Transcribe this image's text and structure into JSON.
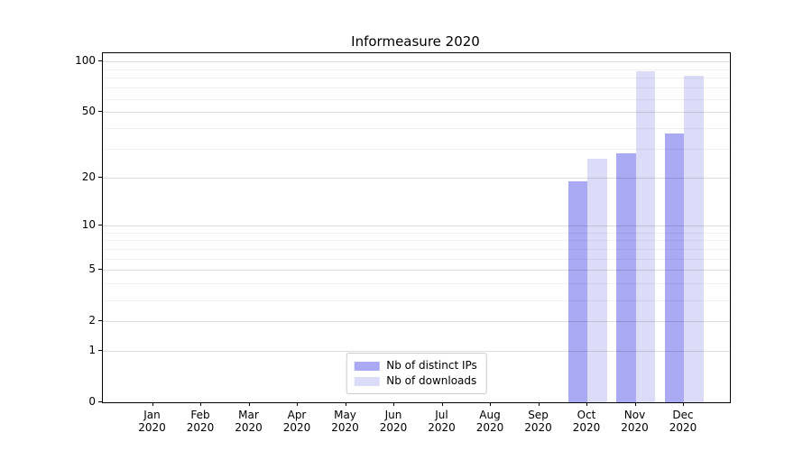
{
  "figure": {
    "title": "Informeasure 2020"
  },
  "chart_data": {
    "type": "bar",
    "title": "Informeasure 2020",
    "categories": [
      "Jan",
      "Feb",
      "Mar",
      "Apr",
      "May",
      "Jun",
      "Jul",
      "Aug",
      "Sep",
      "Oct",
      "Nov",
      "Dec"
    ],
    "x_tick_year": "2020",
    "series": [
      {
        "name": "Nb of distinct IPs",
        "color": "#a9a9f4",
        "values": [
          0,
          0,
          0,
          0,
          0,
          0,
          0,
          0,
          0,
          19,
          28,
          37
        ]
      },
      {
        "name": "Nb of downloads",
        "color": "#dcdcf8",
        "values": [
          0,
          0,
          0,
          0,
          0,
          0,
          0,
          0,
          0,
          26,
          88,
          82
        ]
      }
    ],
    "y_scale": "log1p",
    "ylim": [
      0,
      112
    ],
    "y_ticks": [
      {
        "label": "100",
        "value": 100
      },
      {
        "label": "50",
        "value": 50
      },
      {
        "label": "20",
        "value": 20
      },
      {
        "label": "10",
        "value": 10
      },
      {
        "label": "5",
        "value": 5
      },
      {
        "label": "2",
        "value": 2
      },
      {
        "label": "1",
        "value": 1
      },
      {
        "label": "0",
        "value": 0
      }
    ],
    "y_minor_gridlines": [
      3,
      4,
      6,
      7,
      8,
      9,
      30,
      40,
      60,
      70,
      80,
      90
    ],
    "grid": "horizontal",
    "legend_position": "lower center",
    "colors": {
      "axis": "#000000",
      "text": "#000000",
      "major_grid": "#dddddd",
      "minor_grid": "#f1f1f1",
      "background": "#ffffff"
    }
  },
  "legend": {
    "items": [
      {
        "label": "Nb of distinct IPs"
      },
      {
        "label": "Nb of downloads"
      }
    ]
  }
}
